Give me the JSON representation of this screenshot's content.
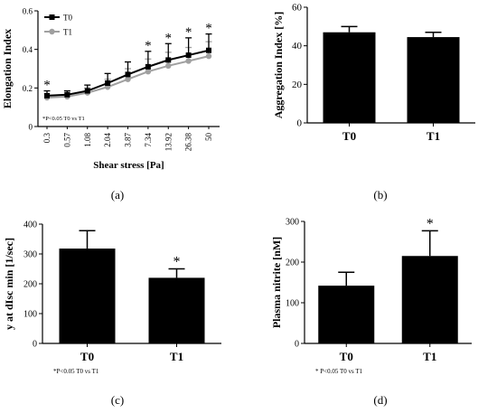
{
  "chart_data": [
    {
      "panel_label": "(a)",
      "type": "line",
      "ylabel": "Elongation Index",
      "xlabel": "Shear stress [Pa]",
      "ylim": [
        0,
        0.6
      ],
      "yticks": [
        "0",
        "0.2",
        "0.4",
        "0.6"
      ],
      "categories": [
        "0.3",
        "0.57",
        "1.08",
        "2.04",
        "3.87",
        "7.34",
        "13.92",
        "26.38",
        "50"
      ],
      "legend_position": "top-left",
      "annotation": "*P<0.05 T0 vs T1",
      "series": [
        {
          "name": "T0",
          "color": "#000000",
          "marker": "square",
          "values": [
            0.16,
            0.165,
            0.185,
            0.225,
            0.27,
            0.31,
            0.345,
            0.37,
            0.395
          ],
          "err": [
            0.025,
            0.02,
            0.03,
            0.05,
            0.065,
            0.08,
            0.085,
            0.09,
            0.085
          ]
        },
        {
          "name": "T1",
          "color": "#a0a0a0",
          "marker": "circle",
          "values": [
            0.15,
            0.155,
            0.175,
            0.205,
            0.245,
            0.285,
            0.315,
            0.34,
            0.365
          ],
          "err": [
            0.02,
            0.02,
            0.025,
            0.04,
            0.055,
            0.065,
            0.07,
            0.07,
            0.075
          ]
        }
      ],
      "significant": [
        true,
        false,
        false,
        false,
        false,
        true,
        true,
        true,
        true
      ],
      "sig_symbol": "*"
    },
    {
      "panel_label": "(b)",
      "type": "bar",
      "ylabel": "Aggregation Index [%]",
      "ylim": [
        0,
        60
      ],
      "yticks": [
        "0",
        "20",
        "40",
        "60"
      ],
      "categories": [
        "T0",
        "T1"
      ],
      "values": [
        47,
        44.5
      ],
      "err": [
        3,
        2.5
      ],
      "significant": [
        false,
        false
      ],
      "sig_symbol": "*"
    },
    {
      "panel_label": "(c)",
      "type": "bar",
      "ylabel": "y at dIsc min [1/sec]",
      "ylim": [
        0,
        400
      ],
      "yticks": [
        "0",
        "100",
        "200",
        "300",
        "400"
      ],
      "categories": [
        "T0",
        "T1"
      ],
      "values": [
        318,
        220
      ],
      "err": [
        60,
        30
      ],
      "significant": [
        false,
        true
      ],
      "sig_symbol": "*",
      "annotation": "*P<0.05 T0 vs T1"
    },
    {
      "panel_label": "(d)",
      "type": "bar",
      "ylabel": "Plasma nitrite [nM]",
      "ylim": [
        0,
        300
      ],
      "yticks": [
        "0",
        "100",
        "200",
        "300"
      ],
      "categories": [
        "T0",
        "T1"
      ],
      "values": [
        142,
        215
      ],
      "err": [
        33,
        62
      ],
      "significant": [
        false,
        true
      ],
      "sig_symbol": "*",
      "annotation": "* P<0.05 T0 vs T1"
    }
  ]
}
